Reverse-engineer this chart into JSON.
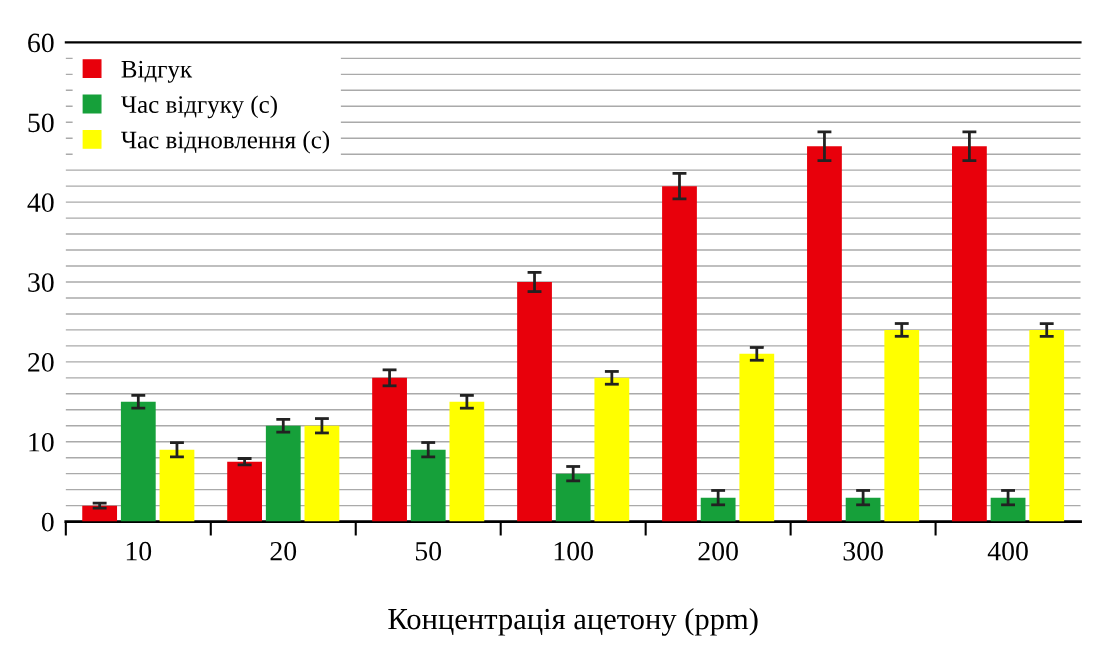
{
  "chart_data": {
    "type": "bar",
    "xlabel": "Концентрація ацетону (ppm)",
    "categories": [
      "10",
      "20",
      "50",
      "100",
      "200",
      "300",
      "400"
    ],
    "series": [
      {
        "name": "Відгук",
        "color": "#e8000b",
        "values": [
          2,
          7.5,
          18,
          30,
          42,
          47,
          47
        ],
        "errors": [
          0.3,
          0.4,
          1,
          1.2,
          1.6,
          1.8,
          1.8
        ]
      },
      {
        "name": "Час відгуку (с)",
        "color": "#16a03a",
        "values": [
          15,
          12,
          9,
          6,
          3,
          3,
          3
        ],
        "errors": [
          0.8,
          0.8,
          0.9,
          0.9,
          0.9,
          0.9,
          0.9
        ]
      },
      {
        "name": "Час відновлення (с)",
        "color": "#ffff00",
        "values": [
          9,
          12,
          15,
          18,
          21,
          24,
          24
        ],
        "errors": [
          0.9,
          0.9,
          0.8,
          0.8,
          0.8,
          0.8,
          0.8
        ]
      }
    ],
    "ylim": [
      0,
      60
    ],
    "yticks": [
      0,
      {
        "value": 2,
        "label": null
      },
      {
        "value": 4,
        "label": null
      },
      {
        "value": 6,
        "label": null
      },
      {
        "value": 8,
        "label": null
      },
      10,
      {
        "value": 12,
        "label": null
      },
      {
        "value": 14,
        "label": null
      },
      {
        "value": 16,
        "label": null
      },
      {
        "value": 18,
        "label": null
      },
      20,
      {
        "value": 22,
        "label": null
      },
      {
        "value": 24,
        "label": null
      },
      {
        "value": 26,
        "label": null
      },
      {
        "value": 28,
        "label": null
      },
      30,
      {
        "value": 32,
        "label": null
      },
      {
        "value": 34,
        "label": null
      },
      {
        "value": 36,
        "label": null
      },
      {
        "value": 38,
        "label": null
      },
      40,
      {
        "value": 42,
        "label": null
      },
      {
        "value": 44,
        "label": null
      },
      {
        "value": 46,
        "label": null
      },
      {
        "value": 48,
        "label": null
      },
      50,
      {
        "value": 52,
        "label": null
      },
      {
        "value": 54,
        "label": null
      },
      {
        "value": 56,
        "label": null
      },
      {
        "value": 58,
        "label": null
      },
      60
    ],
    "grid": "y",
    "legend": "top left"
  }
}
